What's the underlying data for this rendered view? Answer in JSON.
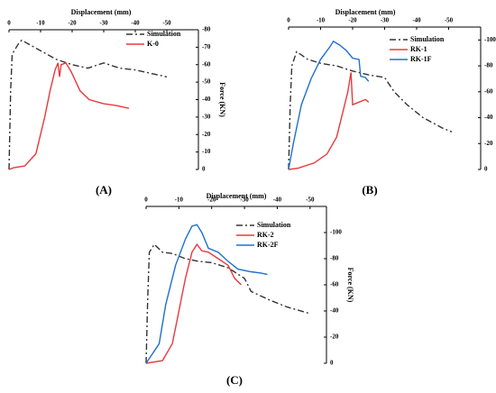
{
  "chart_data": [
    {
      "type": "line",
      "label": "(A)",
      "xlabel": "Displacement (mm)",
      "ylabel": "Force (KN)",
      "xlim": [
        0,
        -60
      ],
      "xticks": [
        0,
        -10,
        -20,
        -30,
        -40,
        -50
      ],
      "ylim": [
        0,
        -80
      ],
      "yticks": [
        0,
        -10,
        -20,
        -30,
        -40,
        -50,
        -60,
        -70,
        -80
      ],
      "legend": "upper right",
      "series": [
        {
          "name": "Simulation",
          "color": "#333333",
          "style": "dashdot",
          "x": [
            0,
            -0.5,
            -1,
            -2,
            -3,
            -4,
            -6,
            -8,
            -12,
            -15,
            -20,
            -25,
            -30,
            -35,
            -40,
            -45,
            -50
          ],
          "values": [
            0,
            -45,
            -66,
            -69,
            -72,
            -74,
            -72,
            -70,
            -66,
            -63,
            -60,
            -58,
            -61,
            -58,
            -57,
            -55,
            -53
          ]
        },
        {
          "name": "K-0",
          "color": "#e8393c",
          "style": "solid",
          "x": [
            0,
            -1.5,
            -5,
            -8.5,
            -11.3,
            -13,
            -14.6,
            -15.5,
            -16,
            -16.5,
            -18,
            -19.7,
            -22.5,
            -25.4,
            -30,
            -34,
            -38
          ],
          "values": [
            0,
            -1,
            -2,
            -9,
            -30,
            -45,
            -57,
            -61,
            -53,
            -60,
            -61,
            -56,
            -45,
            -40,
            -37.6,
            -36.6,
            -35
          ]
        }
      ]
    },
    {
      "type": "line",
      "label": "(B)",
      "xlabel": "Displacement (mm)",
      "ylabel": "Force (KN)",
      "xlim": [
        0,
        -60
      ],
      "xticks": [
        0,
        -10,
        -20,
        -30,
        -40,
        -50
      ],
      "ylim": [
        0,
        -110
      ],
      "yticks": [
        0,
        -20,
        -40,
        -60,
        -80,
        -100
      ],
      "legend": "upper right",
      "series": [
        {
          "name": "Simulation",
          "color": "#333333",
          "style": "dashdot",
          "x": [
            0,
            -0.5,
            -1,
            -2.5,
            -6,
            -10,
            -15,
            -20,
            -25,
            -30,
            -33,
            -37,
            -42,
            -48,
            -51
          ],
          "values": [
            0,
            -50,
            -80,
            -91,
            -85,
            -82,
            -80,
            -76,
            -73,
            -71,
            -60,
            -50,
            -40,
            -32,
            -29
          ]
        },
        {
          "name": "RK-1",
          "color": "#e8393c",
          "style": "solid",
          "x": [
            0,
            -3,
            -8,
            -12,
            -15,
            -17,
            -18.5,
            -19.5,
            -20,
            -22,
            -24,
            -25
          ],
          "values": [
            0,
            -1,
            -5,
            -12,
            -25,
            -45,
            -60,
            -75,
            -50,
            -52,
            -54,
            -52
          ]
        },
        {
          "name": "RK-1F",
          "color": "#1f6fd0",
          "style": "solid",
          "x": [
            0,
            -1.5,
            -4,
            -7,
            -10,
            -13,
            -14,
            -16,
            -18,
            -20,
            -22,
            -22.5,
            -24,
            -25
          ],
          "values": [
            0,
            -20,
            -50,
            -70,
            -85,
            -95,
            -99,
            -96,
            -92,
            -86,
            -85,
            -72,
            -71,
            -68
          ]
        }
      ]
    },
    {
      "type": "line",
      "label": "(C)",
      "xlabel": "Displacement (mm)",
      "ylabel": "Force (KN)",
      "xlim": [
        0,
        -55
      ],
      "xticks": [
        0,
        -10,
        -20,
        -30,
        -40,
        -50
      ],
      "ylim": [
        0,
        -120
      ],
      "yticks": [
        0,
        -20,
        -40,
        -60,
        -80,
        -100
      ],
      "legend": "upper right",
      "series": [
        {
          "name": "Simulation",
          "color": "#333333",
          "style": "dashdot",
          "x": [
            0,
            -0.5,
            -1,
            -2.5,
            -5,
            -8,
            -12,
            -16,
            -20,
            -25,
            -30,
            -32,
            -38,
            -43,
            -50
          ],
          "values": [
            0,
            -50,
            -85,
            -91,
            -85,
            -84,
            -80,
            -78,
            -77,
            -73,
            -65,
            -55,
            -48,
            -43,
            -38
          ]
        },
        {
          "name": "RK-2",
          "color": "#e8393c",
          "style": "solid",
          "x": [
            0,
            -5,
            -8,
            -10,
            -12,
            -14,
            -15.5,
            -17,
            -19,
            -22,
            -25,
            -27,
            -29
          ],
          "values": [
            0,
            -2,
            -15,
            -40,
            -65,
            -85,
            -91,
            -86,
            -85,
            -80,
            -75,
            -65,
            -60
          ]
        },
        {
          "name": "RK-2F",
          "color": "#1f6fd0",
          "style": "solid",
          "x": [
            0,
            -4,
            -6,
            -9,
            -12,
            -14,
            -15.5,
            -17,
            -19,
            -22,
            -25,
            -28,
            -32,
            -35,
            -37
          ],
          "values": [
            0,
            -15,
            -45,
            -75,
            -95,
            -105,
            -106,
            -100,
            -88,
            -85,
            -78,
            -72,
            -70,
            -69,
            -68
          ]
        }
      ]
    }
  ]
}
